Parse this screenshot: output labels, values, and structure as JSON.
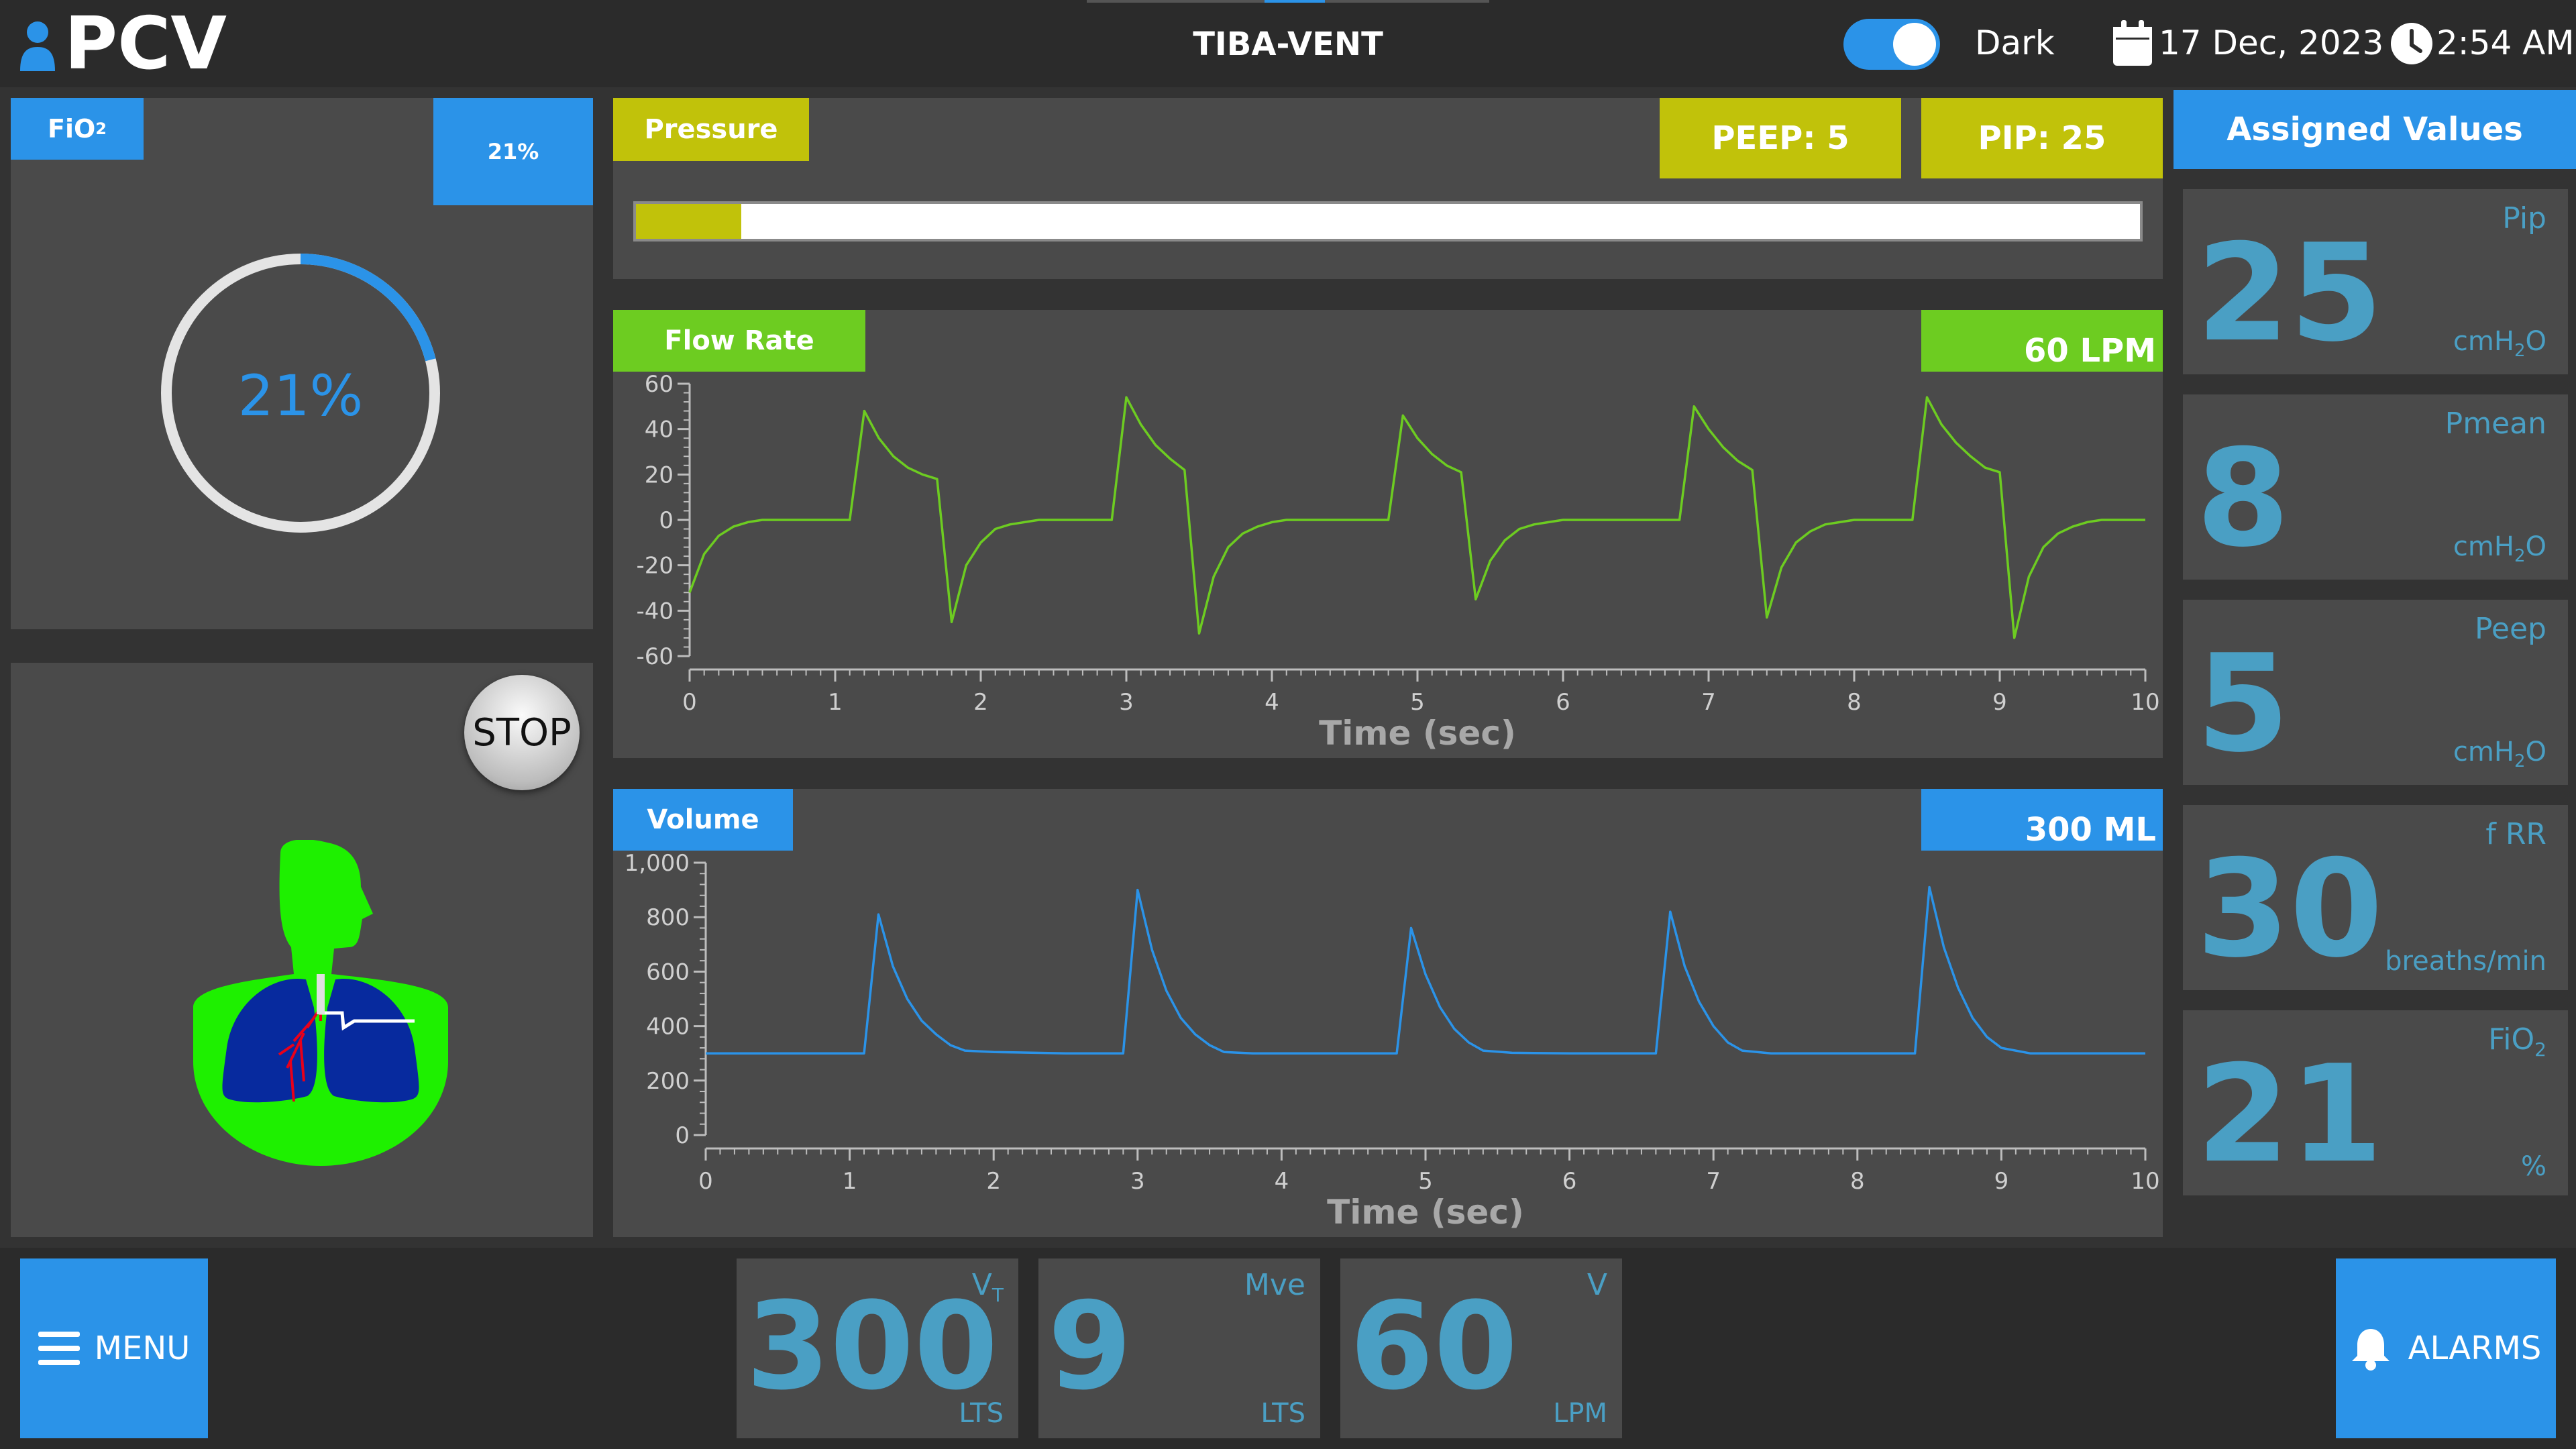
{
  "header": {
    "mode": "PCV",
    "title": "TIBA-VENT",
    "theme_label": "Dark",
    "date": "17 Dec, 2023",
    "time": "2:54 AM"
  },
  "fio2_panel": {
    "tab_label": "FiO",
    "tab_sub": "2",
    "badge": "21%",
    "gauge_text": "21%",
    "gauge_fraction": 0.21
  },
  "patient_panel": {
    "stop_label": "STOP"
  },
  "pressure": {
    "tab_label": "Pressure",
    "peep_label": "PEEP: 5",
    "pip_label": "PIP: 25",
    "bar_fraction": 0.07
  },
  "colors": {
    "accent_blue": "#2b93e8",
    "olive": "#c1c20a",
    "green": "#6dcc21",
    "value_blue": "#4a9fc4"
  },
  "flow_chart": {
    "tab_label": "Flow Rate",
    "badge": "60 LPM",
    "xlabel": "Time (sec)",
    "yticks": [
      "60",
      "40",
      "20",
      "0",
      "-20",
      "-40",
      "-60"
    ],
    "xticks": [
      "0",
      "1",
      "2",
      "3",
      "4",
      "5",
      "6",
      "7",
      "8",
      "9",
      "10"
    ]
  },
  "volume_chart": {
    "tab_label": "Volume",
    "badge": "300 ML",
    "xlabel": "Time (sec)",
    "yticks": [
      "1,000",
      "800",
      "600",
      "400",
      "200",
      "0"
    ],
    "xticks": [
      "0",
      "1",
      "2",
      "3",
      "4",
      "5",
      "6",
      "7",
      "8",
      "9",
      "10"
    ]
  },
  "chart_data": [
    {
      "type": "line",
      "title": "Flow Rate",
      "xlabel": "Time (sec)",
      "ylabel": "",
      "xlim": [
        0,
        10
      ],
      "ylim": [
        -60,
        60
      ],
      "grid": false,
      "series": [
        {
          "x": [
            0,
            0.1,
            0.2,
            0.3,
            0.4,
            0.5,
            0.6,
            0.7,
            0.8,
            0.9,
            1.0,
            1.1,
            1.2,
            1.3,
            1.4,
            1.5,
            1.6,
            1.7,
            1.8,
            1.9,
            2.0,
            2.1,
            2.2,
            2.3,
            2.4,
            2.5,
            2.6,
            2.7,
            2.8,
            2.9,
            3.0,
            3.1,
            3.2,
            3.3,
            3.4,
            3.5,
            3.6,
            3.7,
            3.8,
            3.9,
            4.0,
            4.1,
            4.2,
            4.3,
            4.4,
            4.5,
            4.6,
            4.7,
            4.8,
            4.9,
            5.0,
            5.1,
            5.2,
            5.3,
            5.4,
            5.5,
            5.6,
            5.7,
            5.8,
            5.9,
            6.0,
            6.1,
            6.2,
            6.3,
            6.4,
            6.5,
            6.6,
            6.7,
            6.8,
            6.9,
            7.0,
            7.1,
            7.2,
            7.3,
            7.4,
            7.5,
            7.6,
            7.7,
            7.8,
            7.9,
            8.0,
            8.1,
            8.2,
            8.3,
            8.4,
            8.5,
            8.6,
            8.7,
            8.8,
            8.9,
            9.0,
            9.1,
            9.2,
            9.3,
            9.4,
            9.5,
            9.6,
            9.7,
            9.8,
            9.9,
            10.0
          ],
          "y": [
            -32,
            -15,
            -7,
            -3,
            -1,
            0,
            0,
            0,
            0,
            0,
            0,
            0,
            48,
            36,
            28,
            23,
            20,
            18,
            -45,
            -20,
            -10,
            -4,
            -2,
            -1,
            0,
            0,
            0,
            0,
            0,
            0,
            54,
            42,
            33,
            27,
            22,
            -50,
            -25,
            -12,
            -6,
            -3,
            -1,
            0,
            0,
            0,
            0,
            0,
            0,
            0,
            0,
            46,
            36,
            29,
            24,
            21,
            -35,
            -18,
            -9,
            -4,
            -2,
            -1,
            0,
            0,
            0,
            0,
            0,
            0,
            0,
            0,
            0,
            50,
            40,
            32,
            26,
            22,
            -43,
            -21,
            -10,
            -5,
            -2,
            -1,
            0,
            0,
            0,
            0,
            0,
            54,
            42,
            34,
            28,
            23,
            21,
            -52,
            -25,
            -12,
            -6,
            -3,
            -1,
            0,
            0,
            0,
            0
          ]
        }
      ]
    },
    {
      "type": "line",
      "title": "Volume",
      "xlabel": "Time (sec)",
      "ylabel": "",
      "xlim": [
        0,
        10
      ],
      "ylim": [
        0,
        1000
      ],
      "grid": false,
      "series": [
        {
          "x": [
            0,
            0.5,
            1.0,
            1.1,
            1.2,
            1.3,
            1.4,
            1.5,
            1.6,
            1.7,
            1.8,
            2.0,
            2.5,
            2.9,
            3.0,
            3.1,
            3.2,
            3.3,
            3.4,
            3.5,
            3.6,
            3.8,
            4.2,
            4.8,
            4.9,
            5.0,
            5.1,
            5.2,
            5.3,
            5.4,
            5.6,
            6.0,
            6.6,
            6.7,
            6.8,
            6.9,
            7.0,
            7.1,
            7.2,
            7.4,
            7.8,
            8.4,
            8.5,
            8.6,
            8.7,
            8.8,
            8.9,
            9.0,
            9.2,
            9.6,
            10.0
          ],
          "y": [
            300,
            300,
            300,
            300,
            810,
            620,
            500,
            420,
            370,
            330,
            310,
            305,
            300,
            300,
            900,
            680,
            530,
            430,
            370,
            330,
            305,
            300,
            300,
            300,
            760,
            590,
            470,
            390,
            340,
            310,
            302,
            300,
            300,
            820,
            620,
            490,
            400,
            340,
            310,
            300,
            300,
            300,
            910,
            690,
            540,
            430,
            360,
            320,
            300,
            300,
            300
          ]
        }
      ]
    }
  ],
  "assigned": {
    "header": "Assigned Values",
    "items": [
      {
        "label": "Pip",
        "value": "25",
        "unit": "cmH",
        "unit_sub": "2",
        "unit_tail": "O"
      },
      {
        "label": "Pmean",
        "value": "8",
        "unit": "cmH",
        "unit_sub": "2",
        "unit_tail": "O"
      },
      {
        "label": "Peep",
        "value": "5",
        "unit": "cmH",
        "unit_sub": "2",
        "unit_tail": "O"
      },
      {
        "label": "f RR",
        "value": "30",
        "unit": "breaths/min",
        "unit_sub": "",
        "unit_tail": ""
      },
      {
        "label": "FiO",
        "label_sub": "2",
        "value": "21",
        "unit": "%",
        "unit_sub": "",
        "unit_tail": ""
      }
    ]
  },
  "footer": {
    "menu_label": "MENU",
    "alarms_label": "ALARMS",
    "readouts": [
      {
        "label": "V",
        "label_sub": "T",
        "value": "300",
        "unit": "LTS"
      },
      {
        "label": "Mve",
        "label_sub": "",
        "value": "9",
        "unit": "LTS"
      },
      {
        "label": "V",
        "label_sub": "",
        "value": "60",
        "unit": "LPM"
      }
    ]
  }
}
